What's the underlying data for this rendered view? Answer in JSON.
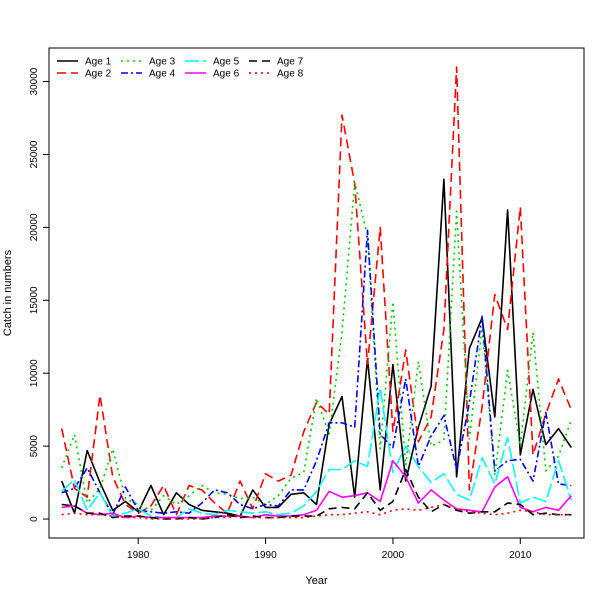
{
  "chart_data": {
    "type": "line",
    "title": "",
    "xlabel": "Year",
    "ylabel": "Catch in numbers",
    "xlim": [
      1973,
      2015
    ],
    "ylim": [
      -1300,
      32300
    ],
    "x_ticks": [
      1980,
      1990,
      2000,
      2010
    ],
    "y_ticks": [
      0,
      5000,
      10000,
      15000,
      20000,
      25000,
      30000
    ],
    "grid": false,
    "legend_position": "top-left",
    "x": [
      1974,
      1975,
      1976,
      1977,
      1978,
      1979,
      1980,
      1981,
      1982,
      1983,
      1984,
      1985,
      1986,
      1987,
      1988,
      1989,
      1990,
      1991,
      1992,
      1993,
      1994,
      1995,
      1996,
      1997,
      1998,
      1999,
      2000,
      2001,
      2002,
      2003,
      2004,
      2005,
      2006,
      2007,
      2008,
      2009,
      2010,
      2011,
      2012,
      2013,
      2014
    ],
    "series": [
      {
        "name": "Age 1",
        "color": "#000000",
        "dash": "",
        "values": [
          2600,
          400,
          4700,
          2500,
          600,
          1200,
          500,
          2300,
          300,
          1800,
          1000,
          600,
          500,
          400,
          200,
          2000,
          800,
          800,
          1700,
          1800,
          1000,
          6500,
          8400,
          1500,
          11000,
          2000,
          10600,
          2600,
          6300,
          9100,
          23300,
          2900,
          11700,
          13800,
          7000,
          21200,
          4400,
          8900,
          5100,
          6200,
          4900
        ]
      },
      {
        "name": "Age 2",
        "color": "#ff0000",
        "dash": "9,5",
        "values": [
          6200,
          2100,
          1500,
          8500,
          2900,
          1000,
          400,
          900,
          2300,
          300,
          2300,
          2000,
          1100,
          400,
          2600,
          700,
          3100,
          2600,
          3000,
          6000,
          8000,
          7200,
          27700,
          23000,
          10600,
          20000,
          6000,
          11600,
          5300,
          7000,
          13000,
          31000,
          2000,
          7700,
          15400,
          13000,
          21400,
          4400,
          7200,
          9600,
          7500
        ]
      },
      {
        "name": "Age 3",
        "color": "#00cd00",
        "dash": "2,4",
        "values": [
          3500,
          5800,
          1100,
          2100,
          4800,
          1400,
          1000,
          600,
          1600,
          1000,
          1600,
          2300,
          1800,
          1700,
          1400,
          1500,
          1000,
          1600,
          2800,
          3200,
          8300,
          5800,
          12800,
          23100,
          19400,
          4800,
          14900,
          3700,
          10800,
          5000,
          5400,
          21100,
          5500,
          13100,
          3000,
          10200,
          5000,
          12800,
          3300,
          4300,
          6800
        ]
      },
      {
        "name": "Age 4",
        "color": "#0000ff",
        "dash": "7,3,2,3",
        "values": [
          1800,
          2100,
          3500,
          1800,
          300,
          2200,
          600,
          500,
          400,
          500,
          400,
          1100,
          2000,
          1800,
          1000,
          700,
          1000,
          900,
          2000,
          2000,
          4000,
          6600,
          6600,
          6300,
          19800,
          5800,
          4900,
          9600,
          3600,
          5700,
          7100,
          3400,
          8000,
          13900,
          3300,
          4000,
          4100,
          2600,
          7300,
          2400,
          2300
        ]
      },
      {
        "name": "Age 5",
        "color": "#00ffff",
        "dash": "14,4",
        "values": [
          1900,
          2700,
          600,
          1800,
          200,
          400,
          700,
          200,
          100,
          100,
          700,
          400,
          300,
          600,
          500,
          400,
          500,
          300,
          400,
          900,
          1900,
          3400,
          3400,
          4000,
          3600,
          9000,
          3200,
          5000,
          3600,
          2500,
          3100,
          1700,
          1300,
          4200,
          2400,
          5600,
          1100,
          1500,
          1200,
          4000,
          1300
        ]
      },
      {
        "name": "Age 6",
        "color": "#ff00ff",
        "dash": "",
        "values": [
          800,
          900,
          400,
          300,
          400,
          100,
          200,
          100,
          100,
          100,
          100,
          100,
          200,
          200,
          200,
          100,
          300,
          200,
          200,
          300,
          600,
          1900,
          1500,
          1600,
          1800,
          1200,
          4000,
          2900,
          1100,
          2000,
          1300,
          700,
          600,
          500,
          2200,
          2900,
          800,
          500,
          800,
          600,
          1600
        ]
      },
      {
        "name": "Age 7",
        "color": "#000000",
        "dash": "8,5",
        "values": [
          1000,
          900,
          400,
          400,
          100,
          200,
          200,
          100,
          0,
          0,
          100,
          0,
          100,
          300,
          100,
          200,
          100,
          100,
          200,
          200,
          200,
          700,
          800,
          700,
          1800,
          600,
          1200,
          3400,
          1500,
          500,
          1000,
          600,
          400,
          500,
          500,
          1100,
          1000,
          300,
          400,
          300,
          300
        ]
      },
      {
        "name": "Age 8",
        "color": "#ff0000",
        "dash": "2,4",
        "values": [
          300,
          400,
          300,
          300,
          200,
          100,
          100,
          0,
          0,
          0,
          0,
          0,
          100,
          100,
          200,
          100,
          100,
          100,
          100,
          100,
          200,
          300,
          300,
          400,
          500,
          300,
          600,
          700,
          600,
          800,
          1000,
          700,
          500,
          400,
          300,
          400,
          600,
          500,
          300,
          300,
          300
        ]
      }
    ]
  }
}
